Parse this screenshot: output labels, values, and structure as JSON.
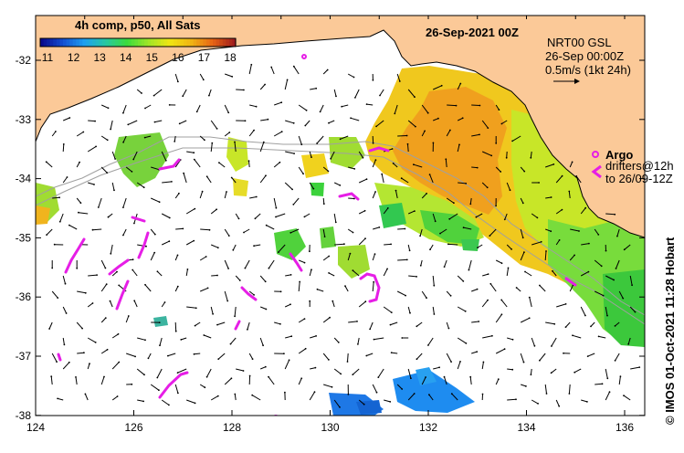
{
  "map": {
    "date_title": "26-Sep-2021 00Z",
    "colorbar": {
      "title": "4h comp, p50, All Sats",
      "ticks": [
        "11",
        "12",
        "13",
        "14",
        "15",
        "16",
        "17",
        "18"
      ],
      "colors": [
        "#0a0a8c",
        "#1450d2",
        "#1ea0f0",
        "#28c8a0",
        "#3cdc3c",
        "#a0e628",
        "#f0e614",
        "#f0b414",
        "#e66414",
        "#a01e1e"
      ]
    },
    "legend": {
      "product": "NRT00 GSL",
      "time": "26-Sep 00:00Z",
      "scale": "0.5m/s (1kt 24h)",
      "argo_label": "Argo",
      "drifters_label": "drifters@12h",
      "drifters_to": "to 26/09-12Z"
    },
    "x_ticks": [
      "124",
      "126",
      "128",
      "130",
      "132",
      "134",
      "136"
    ],
    "y_ticks": [
      "-32",
      "-33",
      "-34",
      "-35",
      "-36",
      "-37",
      "-38"
    ],
    "credit": "© IMOS 01-Oct-2021 11:28 Hobart",
    "colors": {
      "land": "#fbc998",
      "sea": "#ffffff",
      "drifter": "#e61ee6",
      "bathy": "#a0a0a0"
    }
  }
}
